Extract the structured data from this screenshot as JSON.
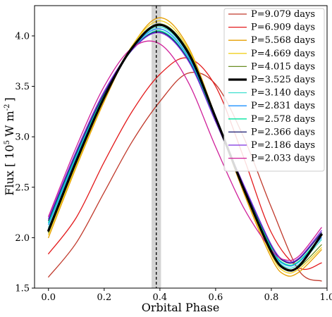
{
  "chart_data": {
    "type": "line",
    "xlabel": "Orbital Phase",
    "ylabel_main": "Flux  [ 10",
    "ylabel_exp": "5",
    "ylabel_unit": " W m",
    "ylabel_unit_exp": "-2",
    "ylabel_close": "]",
    "xlim": [
      -0.05,
      1.0
    ],
    "ylim": [
      1.5,
      4.3
    ],
    "xticks": [
      0.0,
      0.2,
      0.4,
      0.6,
      0.8,
      1.0
    ],
    "xtick_labels": [
      "0.0",
      "0.2",
      "0.4",
      "0.6",
      "0.8",
      "1.0"
    ],
    "yticks": [
      1.5,
      2.0,
      2.5,
      3.0,
      3.5,
      4.0
    ],
    "ytick_labels": [
      "1.5",
      "2.0",
      "2.5",
      "3.0",
      "3.5",
      "4.0"
    ],
    "vline": {
      "x": 0.387,
      "band": [
        0.37,
        0.404
      ],
      "color": "#000000",
      "band_color": "#cccccc"
    },
    "legend_position": "top-right",
    "series": [
      {
        "name": "P=9.079 days",
        "color": "#c0392b",
        "width": 1.3,
        "x": [
          0.0,
          0.1,
          0.2,
          0.3,
          0.4,
          0.5,
          0.6,
          0.7,
          0.8,
          0.9,
          0.98
        ],
        "y": [
          1.61,
          1.95,
          2.45,
          2.95,
          3.35,
          3.63,
          3.52,
          3.0,
          2.3,
          1.67,
          1.57
        ]
      },
      {
        "name": "P=6.909 days",
        "color": "#e31a1c",
        "width": 1.3,
        "x": [
          0.0,
          0.1,
          0.2,
          0.3,
          0.4,
          0.5,
          0.6,
          0.7,
          0.8,
          0.9,
          0.98
        ],
        "y": [
          1.84,
          2.2,
          2.75,
          3.25,
          3.62,
          3.78,
          3.5,
          2.8,
          2.05,
          1.7,
          1.75
        ]
      },
      {
        "name": "P=5.568 days",
        "color": "#e69f00",
        "width": 1.3,
        "x": [
          0.0,
          0.1,
          0.2,
          0.3,
          0.4,
          0.5,
          0.6,
          0.7,
          0.8,
          0.85,
          0.9,
          0.98
        ],
        "y": [
          2.0,
          2.7,
          3.35,
          3.9,
          4.18,
          3.9,
          3.2,
          2.45,
          1.8,
          1.63,
          1.66,
          1.88
        ]
      },
      {
        "name": "P=4.669 days",
        "color": "#f0d020",
        "width": 1.3,
        "x": [
          0.0,
          0.1,
          0.2,
          0.3,
          0.4,
          0.5,
          0.6,
          0.7,
          0.8,
          0.85,
          0.9,
          0.98
        ],
        "y": [
          2.03,
          2.72,
          3.37,
          3.9,
          4.15,
          3.88,
          3.2,
          2.47,
          1.83,
          1.66,
          1.69,
          1.9
        ]
      },
      {
        "name": "P=4.015 days",
        "color": "#6b8e23",
        "width": 1.3,
        "x": [
          0.0,
          0.1,
          0.2,
          0.3,
          0.4,
          0.5,
          0.6,
          0.7,
          0.8,
          0.85,
          0.9,
          0.98
        ],
        "y": [
          2.05,
          2.74,
          3.38,
          3.89,
          4.12,
          3.86,
          3.2,
          2.48,
          1.85,
          1.68,
          1.71,
          1.93
        ]
      },
      {
        "name": "P=3.525 days",
        "color": "#000000",
        "width": 3.2,
        "x": [
          0.0,
          0.1,
          0.2,
          0.3,
          0.4,
          0.5,
          0.6,
          0.7,
          0.8,
          0.85,
          0.9,
          0.98
        ],
        "y": [
          2.07,
          2.76,
          3.39,
          3.88,
          4.11,
          3.84,
          3.19,
          2.49,
          1.86,
          1.69,
          1.72,
          2.03
        ]
      },
      {
        "name": "P=3.140 days",
        "color": "#40e0d0",
        "width": 1.3,
        "x": [
          0.0,
          0.1,
          0.2,
          0.3,
          0.4,
          0.5,
          0.6,
          0.7,
          0.8,
          0.85,
          0.9,
          0.98
        ],
        "y": [
          2.1,
          2.78,
          3.4,
          3.87,
          4.09,
          3.82,
          3.18,
          2.5,
          1.88,
          1.71,
          1.74,
          1.98
        ]
      },
      {
        "name": "P=2.831 days",
        "color": "#1e90ff",
        "width": 1.3,
        "x": [
          0.0,
          0.1,
          0.2,
          0.3,
          0.4,
          0.5,
          0.6,
          0.7,
          0.8,
          0.85,
          0.9,
          0.98
        ],
        "y": [
          2.13,
          2.8,
          3.41,
          3.87,
          4.07,
          3.8,
          3.17,
          2.5,
          1.89,
          1.73,
          1.76,
          2.0
        ]
      },
      {
        "name": "P=2.578 days",
        "color": "#00e5a0",
        "width": 1.3,
        "x": [
          0.0,
          0.1,
          0.2,
          0.3,
          0.4,
          0.5,
          0.6,
          0.7,
          0.8,
          0.85,
          0.9,
          0.98
        ],
        "y": [
          2.15,
          2.82,
          3.42,
          3.86,
          4.05,
          3.78,
          3.16,
          2.51,
          1.9,
          1.74,
          1.77,
          2.02
        ]
      },
      {
        "name": "P=2.366 days",
        "color": "#191970",
        "width": 1.3,
        "x": [
          0.0,
          0.1,
          0.2,
          0.3,
          0.4,
          0.5,
          0.6,
          0.7,
          0.8,
          0.85,
          0.9,
          0.98
        ],
        "y": [
          2.17,
          2.84,
          3.43,
          3.86,
          4.04,
          3.77,
          3.15,
          2.52,
          1.92,
          1.76,
          1.79,
          2.05
        ]
      },
      {
        "name": "P=2.186 days",
        "color": "#7b2fe0",
        "width": 1.3,
        "x": [
          0.0,
          0.1,
          0.2,
          0.3,
          0.4,
          0.5,
          0.6,
          0.7,
          0.8,
          0.85,
          0.9,
          0.98
        ],
        "y": [
          2.19,
          2.86,
          3.45,
          3.86,
          4.03,
          3.76,
          3.15,
          2.53,
          1.93,
          1.77,
          1.8,
          2.07
        ]
      },
      {
        "name": "P=2.033 days",
        "color": "#d0209a",
        "width": 1.3,
        "x": [
          0.0,
          0.1,
          0.2,
          0.3,
          0.4,
          0.5,
          0.6,
          0.7,
          0.8,
          0.85,
          0.9,
          0.98
        ],
        "y": [
          2.21,
          2.9,
          3.5,
          3.88,
          3.92,
          3.55,
          2.9,
          2.3,
          1.88,
          1.78,
          1.82,
          2.1
        ]
      }
    ]
  }
}
